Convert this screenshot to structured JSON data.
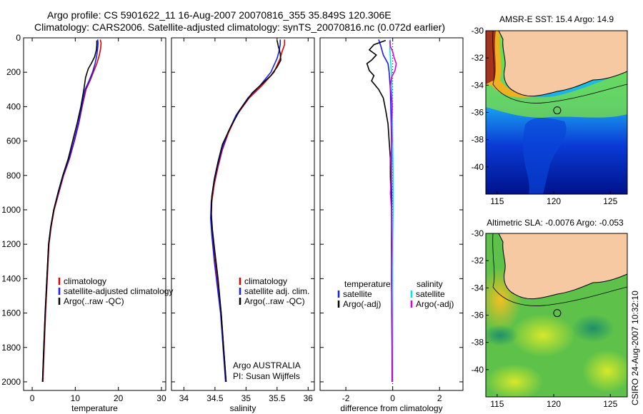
{
  "header": {
    "line1": "Argo profile: CS 5901622_11 16-Aug-2007 20070816_355 35.849S 120.306E",
    "line2": "Climatology: CARS2006. Satellite-adjusted climatology: synTS_20070816.nc (0.072d earlier)"
  },
  "side_label": "CSIRO 24-Aug-2007 10:32:10",
  "colors": {
    "climatology": "#e00000",
    "satellite": "#1a1aff",
    "argo": "#000000",
    "salinity_satellite": "#00e5ff",
    "salinity_argo": "#e000e0",
    "land": "#f7c9a2",
    "coast": "#000000"
  },
  "chart_data": [
    {
      "type": "line",
      "name": "temperature-profile",
      "xlabel": "temperature",
      "ylabel": "",
      "xlim": [
        -2,
        31
      ],
      "ylim": [
        2050,
        0
      ],
      "xticks": [
        0,
        10,
        20,
        30
      ],
      "yticks": [
        0,
        200,
        400,
        600,
        800,
        1000,
        1200,
        1400,
        1600,
        1800,
        2000
      ],
      "legend": [
        "climatology",
        "satellite-adjusted climatology",
        "Argo(..raw -QC)"
      ],
      "series": [
        {
          "name": "climatology",
          "color": "#e00000",
          "points": [
            [
              15.8,
              10
            ],
            [
              16.0,
              30
            ],
            [
              15.9,
              60
            ],
            [
              15.6,
              100
            ],
            [
              15.0,
              150
            ],
            [
              14.2,
              200
            ],
            [
              13.4,
              250
            ],
            [
              12.5,
              300
            ],
            [
              11.6,
              400
            ],
            [
              10.8,
              500
            ],
            [
              9.8,
              600
            ],
            [
              8.7,
              700
            ],
            [
              7.3,
              800
            ],
            [
              6.2,
              900
            ],
            [
              5.1,
              1000
            ],
            [
              4.4,
              1100
            ],
            [
              3.9,
              1200
            ],
            [
              3.5,
              1400
            ],
            [
              3.1,
              1600
            ],
            [
              2.8,
              1800
            ],
            [
              2.5,
              2000
            ]
          ]
        },
        {
          "name": "satellite-adjusted climatology",
          "color": "#1a1aff",
          "points": [
            [
              15.2,
              10
            ],
            [
              15.3,
              30
            ],
            [
              15.2,
              60
            ],
            [
              15.0,
              100
            ],
            [
              14.6,
              150
            ],
            [
              14.0,
              200
            ],
            [
              13.2,
              250
            ],
            [
              12.3,
              300
            ],
            [
              11.5,
              400
            ],
            [
              10.7,
              500
            ],
            [
              9.7,
              600
            ],
            [
              8.6,
              700
            ],
            [
              7.2,
              800
            ],
            [
              6.1,
              900
            ],
            [
              5.0,
              1000
            ],
            [
              4.3,
              1100
            ],
            [
              3.8,
              1200
            ],
            [
              3.4,
              1400
            ],
            [
              3.0,
              1600
            ],
            [
              2.7,
              1800
            ],
            [
              2.4,
              2000
            ]
          ]
        },
        {
          "name": "Argo(..raw -QC)",
          "color": "#000000",
          "points": [
            [
              15.0,
              15
            ],
            [
              15.0,
              40
            ],
            [
              14.9,
              70
            ],
            [
              14.5,
              110
            ],
            [
              13.7,
              150
            ],
            [
              13.0,
              180
            ],
            [
              12.4,
              230
            ],
            [
              12.0,
              300
            ],
            [
              11.3,
              400
            ],
            [
              10.4,
              500
            ],
            [
              9.4,
              600
            ],
            [
              8.4,
              700
            ],
            [
              7.1,
              800
            ],
            [
              6.0,
              900
            ],
            [
              5.0,
              1000
            ],
            [
              4.3,
              1100
            ],
            [
              3.8,
              1200
            ],
            [
              3.4,
              1400
            ],
            [
              3.0,
              1600
            ],
            [
              2.7,
              1800
            ],
            [
              2.4,
              2000
            ]
          ]
        }
      ]
    },
    {
      "type": "line",
      "name": "salinity-profile",
      "xlabel": "salinity",
      "ylabel": "",
      "xlim": [
        33.8,
        36.1
      ],
      "ylim": [
        2050,
        0
      ],
      "xticks": [
        34,
        34.5,
        35,
        35.5,
        36
      ],
      "yticks": [
        0,
        200,
        400,
        600,
        800,
        1000,
        1200,
        1400,
        1600,
        1800,
        2000
      ],
      "legend": [
        "climatology",
        "satellite adj. clim.",
        "Argo(..raw -QC)"
      ],
      "annotations": [
        "Argo AUSTRALIA",
        "PI: Susan Wijffels"
      ],
      "series": [
        {
          "name": "climatology",
          "color": "#e00000",
          "points": [
            [
              35.62,
              10
            ],
            [
              35.62,
              40
            ],
            [
              35.58,
              80
            ],
            [
              35.55,
              120
            ],
            [
              35.45,
              200
            ],
            [
              35.25,
              280
            ],
            [
              35.05,
              350
            ],
            [
              34.85,
              450
            ],
            [
              34.72,
              550
            ],
            [
              34.62,
              650
            ],
            [
              34.55,
              750
            ],
            [
              34.49,
              850
            ],
            [
              34.45,
              950
            ],
            [
              34.44,
              1050
            ],
            [
              34.46,
              1150
            ],
            [
              34.5,
              1300
            ],
            [
              34.55,
              1450
            ],
            [
              34.6,
              1600
            ],
            [
              34.64,
              1800
            ],
            [
              34.68,
              2000
            ]
          ]
        },
        {
          "name": "satellite adj. clim.",
          "color": "#1a1aff",
          "points": [
            [
              35.55,
              10
            ],
            [
              35.55,
              40
            ],
            [
              35.53,
              80
            ],
            [
              35.5,
              120
            ],
            [
              35.4,
              200
            ],
            [
              35.22,
              280
            ],
            [
              35.03,
              350
            ],
            [
              34.84,
              450
            ],
            [
              34.71,
              550
            ],
            [
              34.61,
              650
            ],
            [
              34.54,
              750
            ],
            [
              34.48,
              850
            ],
            [
              34.44,
              950
            ],
            [
              34.43,
              1050
            ],
            [
              34.45,
              1150
            ],
            [
              34.49,
              1300
            ],
            [
              34.54,
              1450
            ],
            [
              34.59,
              1600
            ],
            [
              34.63,
              1800
            ],
            [
              34.67,
              2000
            ]
          ]
        },
        {
          "name": "Argo(..raw -QC)",
          "color": "#000000",
          "points": [
            [
              35.5,
              15
            ],
            [
              35.52,
              50
            ],
            [
              35.55,
              90
            ],
            [
              35.56,
              130
            ],
            [
              35.5,
              170
            ],
            [
              35.4,
              220
            ],
            [
              35.28,
              260
            ],
            [
              35.1,
              320
            ],
            [
              34.9,
              420
            ],
            [
              34.75,
              520
            ],
            [
              34.62,
              620
            ],
            [
              34.55,
              720
            ],
            [
              34.49,
              820
            ],
            [
              34.45,
              920
            ],
            [
              34.44,
              1020
            ],
            [
              34.46,
              1120
            ],
            [
              34.5,
              1250
            ],
            [
              34.55,
              1400
            ],
            [
              34.6,
              1600
            ],
            [
              34.64,
              1800
            ],
            [
              34.68,
              2000
            ]
          ]
        }
      ]
    },
    {
      "type": "line",
      "name": "difference-profile",
      "xlabel": "difference from climatology",
      "ylabel": "",
      "xlim": [
        -3.1,
        3.0
      ],
      "ylim": [
        2050,
        0
      ],
      "xticks": [
        -2,
        0,
        2
      ],
      "yticks": [
        0,
        200,
        400,
        600,
        800,
        1000,
        1200,
        1400,
        1600,
        1800,
        2000
      ],
      "legend": [
        "temperature",
        "satellite",
        "Argo(-adj)",
        "salinity",
        "satellite",
        "Argo(-adj)"
      ],
      "series": [
        {
          "name": "temperature satellite",
          "color": "#1a1aff",
          "points": [
            [
              -0.6,
              10
            ],
            [
              -0.5,
              50
            ],
            [
              -0.4,
              100
            ],
            [
              -0.2,
              150
            ],
            [
              -0.15,
              200
            ],
            [
              -0.1,
              300
            ],
            [
              -0.08,
              400
            ],
            [
              -0.05,
              600
            ],
            [
              -0.05,
              800
            ],
            [
              -0.04,
              1000
            ],
            [
              -0.03,
              1200
            ],
            [
              -0.03,
              1500
            ],
            [
              -0.02,
              1800
            ],
            [
              -0.02,
              2000
            ]
          ]
        },
        {
          "name": "temperature Argo(-adj)",
          "color": "#000000",
          "points": [
            [
              -0.3,
              15
            ],
            [
              -0.8,
              40
            ],
            [
              -1.0,
              70
            ],
            [
              -0.7,
              100
            ],
            [
              -0.9,
              130
            ],
            [
              -1.1,
              150
            ],
            [
              -1.0,
              190
            ],
            [
              -0.8,
              220
            ],
            [
              -0.9,
              250
            ],
            [
              -0.6,
              300
            ],
            [
              -0.4,
              350
            ],
            [
              -0.3,
              420
            ],
            [
              -0.2,
              500
            ],
            [
              -0.15,
              600
            ],
            [
              -0.1,
              700
            ],
            [
              -0.1,
              800
            ],
            [
              -0.08,
              900
            ],
            [
              -0.05,
              1000
            ],
            [
              -0.05,
              1200
            ],
            [
              -0.05,
              1400
            ],
            [
              -0.04,
              1600
            ],
            [
              -0.03,
              1800
            ],
            [
              -0.02,
              2000
            ]
          ]
        },
        {
          "name": "salinity satellite",
          "color": "#00e5ff",
          "points": [
            [
              -0.1,
              10
            ],
            [
              -0.12,
              60
            ],
            [
              -0.1,
              120
            ],
            [
              -0.05,
              200
            ],
            [
              -0.03,
              300
            ],
            [
              -0.02,
              400
            ],
            [
              0.0,
              600
            ],
            [
              0.02,
              800
            ],
            [
              0.02,
              1000
            ],
            [
              0.0,
              1200
            ],
            [
              0.0,
              1500
            ],
            [
              0.0,
              1800
            ],
            [
              0.0,
              2000
            ]
          ]
        },
        {
          "name": "salinity Argo(-adj)",
          "color": "#e000e0",
          "points": [
            [
              -0.12,
              15
            ],
            [
              -0.1,
              50
            ],
            [
              0.0,
              80
            ],
            [
              0.05,
              110
            ],
            [
              0.15,
              150
            ],
            [
              0.1,
              190
            ],
            [
              -0.05,
              230
            ],
            [
              -0.1,
              280
            ],
            [
              -0.05,
              340
            ],
            [
              -0.02,
              400
            ],
            [
              -0.05,
              500
            ],
            [
              -0.03,
              600
            ],
            [
              -0.08,
              700
            ],
            [
              -0.05,
              800
            ],
            [
              -0.1,
              900
            ],
            [
              -0.05,
              1000
            ],
            [
              -0.03,
              1200
            ],
            [
              -0.05,
              1400
            ],
            [
              -0.03,
              1600
            ],
            [
              -0.02,
              1800
            ],
            [
              -0.01,
              2000
            ]
          ]
        }
      ]
    },
    {
      "type": "heatmap",
      "name": "sst-map",
      "title": "AMSR-E SST: 15.4 Argo: 14.9",
      "xlim": [
        114,
        126.5
      ],
      "ylim": [
        -42,
        -30
      ],
      "xticks": [
        115,
        120,
        125
      ],
      "yticks": [
        -30,
        -32,
        -34,
        -36,
        -38,
        -40
      ],
      "marker": [
        120.306,
        -35.849
      ]
    },
    {
      "type": "heatmap",
      "name": "sla-map",
      "title": "Altimetric SLA: -0.0076 Argo: -0.053",
      "xlim": [
        114,
        126.5
      ],
      "ylim": [
        -42,
        -30
      ],
      "xticks": [
        115,
        120,
        125
      ],
      "yticks": [
        -30,
        -32,
        -34,
        -36,
        -38,
        -40
      ],
      "marker": [
        120.306,
        -35.849
      ]
    }
  ]
}
